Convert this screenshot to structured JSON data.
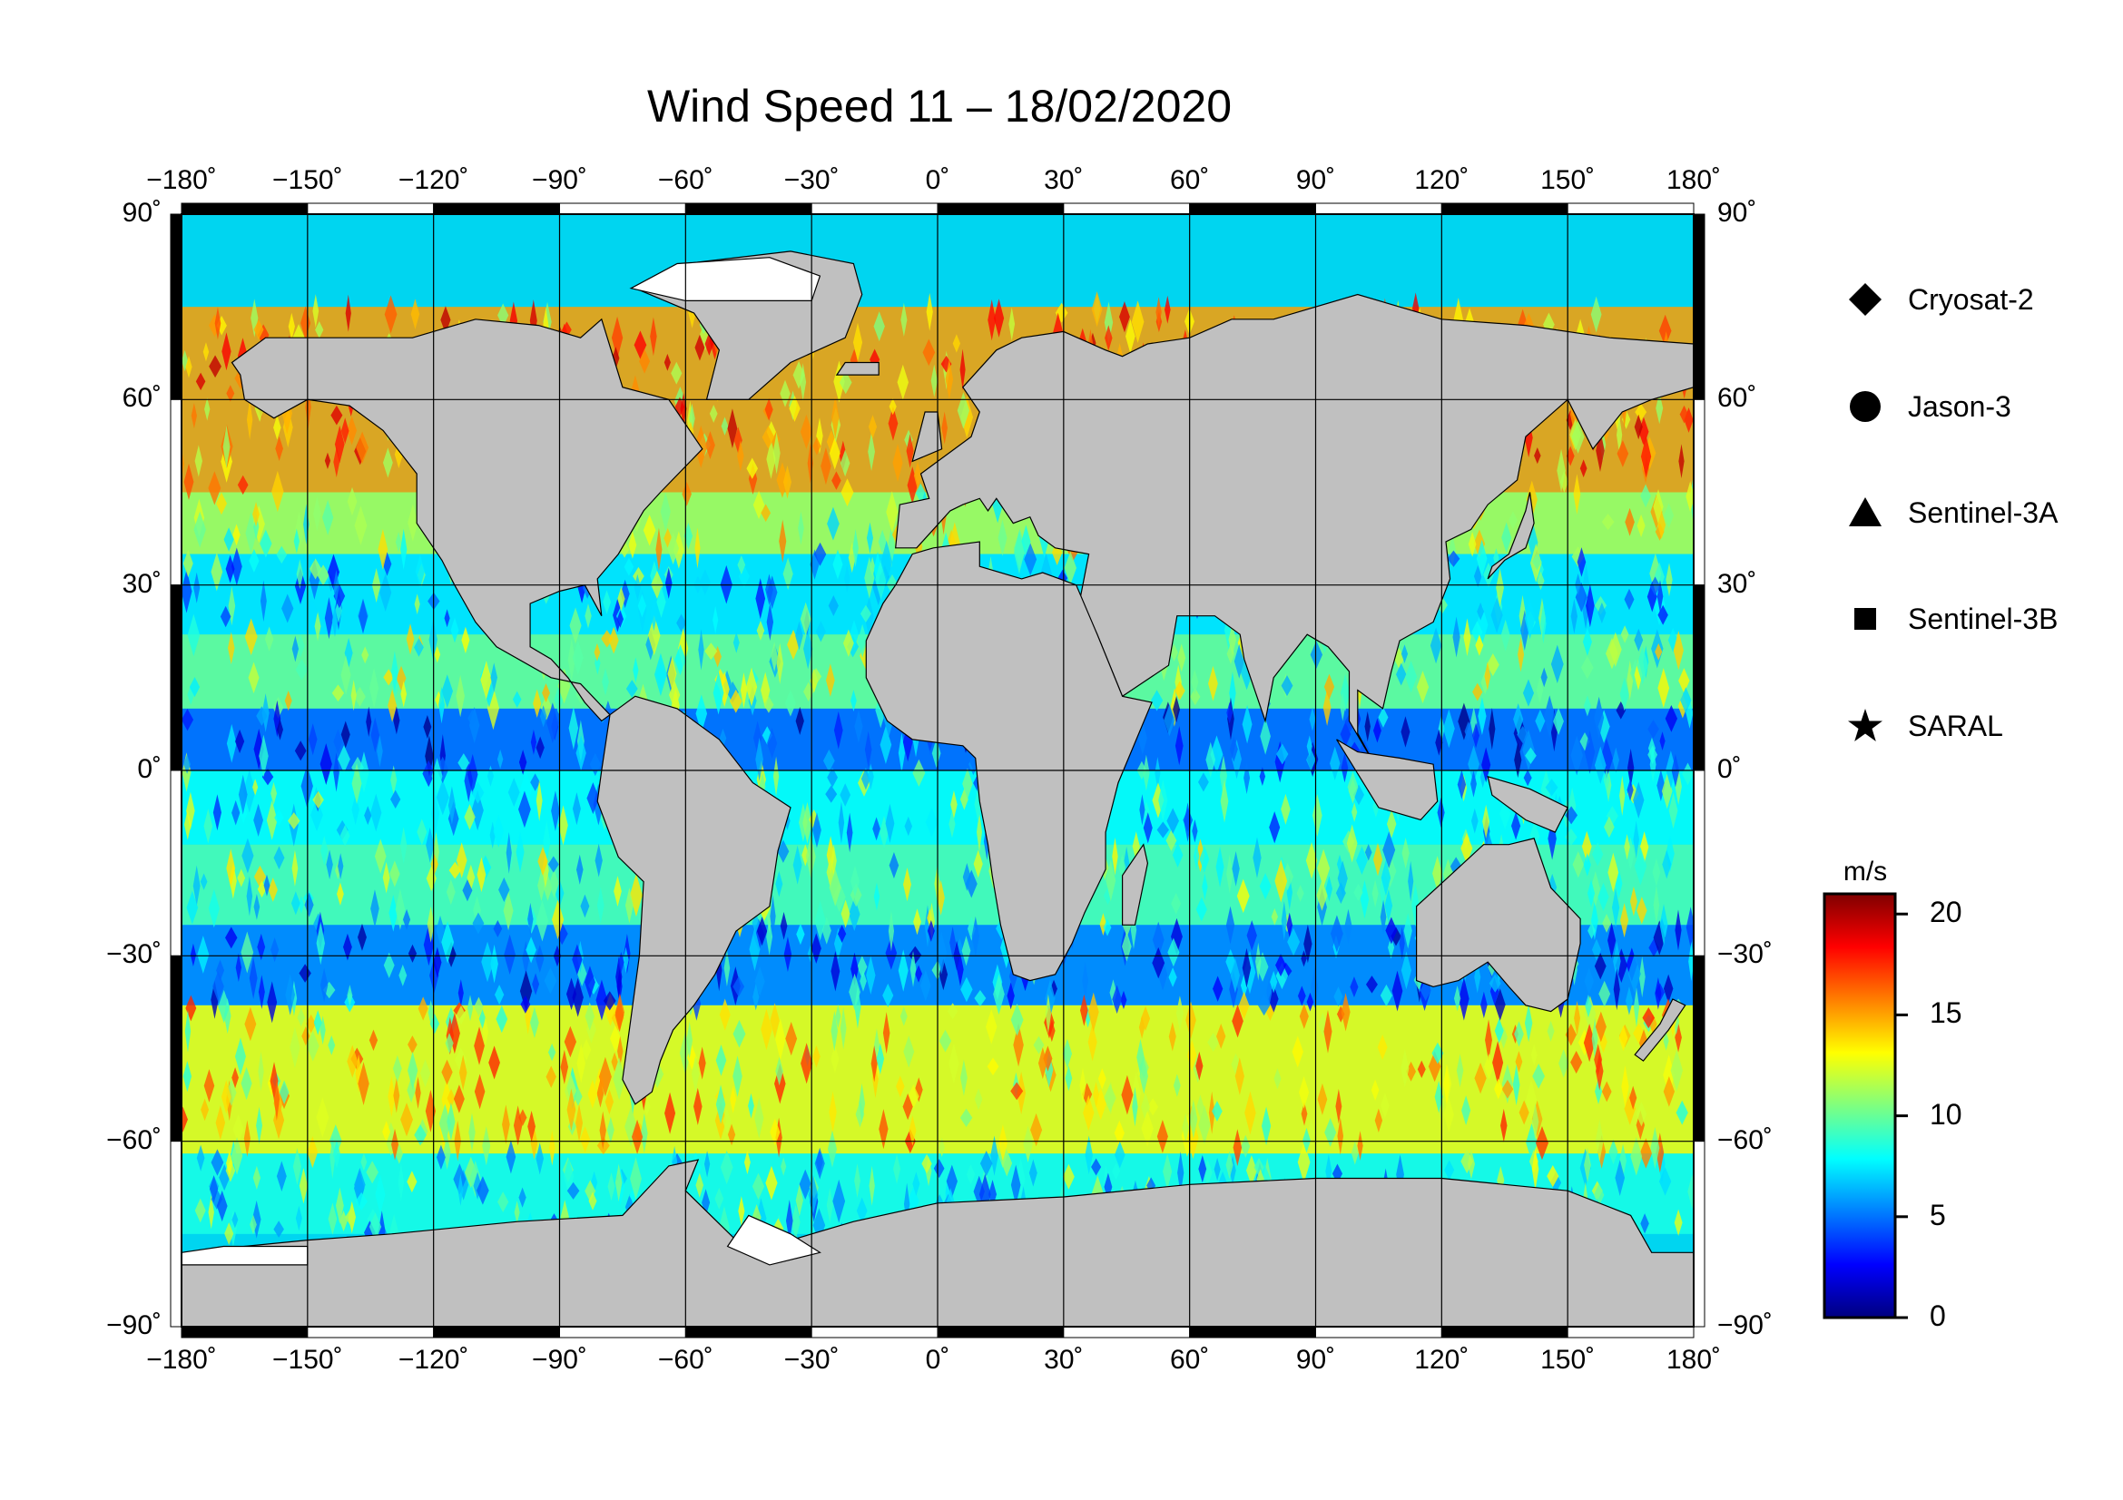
{
  "title": "Wind Speed 11 – 18/02/2020",
  "axes": {
    "lon_ticks": [
      "−180˚",
      "−150˚",
      "−120˚",
      "−90˚",
      "−60˚",
      "−30˚",
      "0˚",
      "30˚",
      "60˚",
      "90˚",
      "120˚",
      "150˚",
      "180˚"
    ],
    "lat_ticks_left": [
      "90˚",
      "60˚",
      "30˚",
      "0˚",
      "−30˚",
      "−60˚",
      "−90˚"
    ],
    "lat_ticks_right": [
      "90˚",
      "60˚",
      "30˚",
      "0˚",
      "−30˚",
      "−60˚",
      "−90˚"
    ],
    "lon_values": [
      -180,
      -150,
      -120,
      -90,
      -60,
      -30,
      0,
      30,
      60,
      90,
      120,
      150,
      180
    ],
    "lat_values": [
      90,
      60,
      30,
      0,
      -30,
      -60,
      -90
    ],
    "lon_range": [
      -180,
      180
    ],
    "lat_range": [
      -90,
      90
    ],
    "grid": true
  },
  "legend": {
    "placement": "right",
    "items": [
      {
        "label": "Cryosat-2",
        "symbol": "diamond-icon"
      },
      {
        "label": "Jason-3",
        "symbol": "circle-icon"
      },
      {
        "label": "Sentinel-3A",
        "symbol": "triangle-icon"
      },
      {
        "label": "Sentinel-3B",
        "symbol": "square-icon"
      },
      {
        "label": "SARAL",
        "symbol": "star-icon"
      }
    ]
  },
  "colorbar": {
    "unit": "m/s",
    "range": [
      0,
      21
    ],
    "ticks": [
      "20",
      "15",
      "10",
      "5",
      "0"
    ],
    "tick_values": [
      20,
      15,
      10,
      5,
      0
    ],
    "colormap": [
      "#00007f",
      "#0000ff",
      "#007fff",
      "#00ffff",
      "#7fff7f",
      "#ffff00",
      "#ff7f00",
      "#ff0000",
      "#7f0000"
    ]
  },
  "colors": {
    "land": "#c0c0c0",
    "ice": "#ffffff",
    "frame": "#000000",
    "grid": "#000000"
  }
}
